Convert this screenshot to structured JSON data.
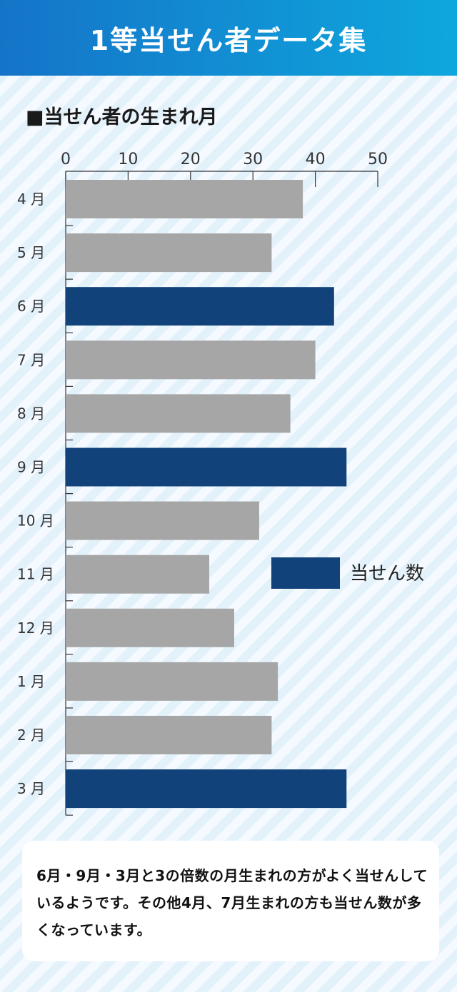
{
  "header": {
    "title": "1等当せん者データ集"
  },
  "section_title": "■当せん者の生まれ月",
  "note": "6月・9月・3月と3の倍数の月生まれの方がよく当せんしているようです。その他4月、7月生まれの方も当せん数が多くなっています。",
  "colors": {
    "highlight": "#12427a",
    "normal": "#a6a6a6",
    "header_start": "#1574c8",
    "header_end": "#0ea7dd"
  },
  "chart_data": {
    "type": "bar",
    "orientation": "horizontal",
    "title": "■当せん者の生まれ月",
    "xlim": [
      0,
      50
    ],
    "ticks": [
      "0",
      "10",
      "20",
      "30",
      "40",
      "50"
    ],
    "tick_values": [
      0,
      10,
      20,
      30,
      40,
      50
    ],
    "categories": [
      "4 月",
      "5 月",
      "6 月",
      "7 月",
      "8 月",
      "9 月",
      "10 月",
      "11 月",
      "12 月",
      "1 月",
      "2 月",
      "3 月"
    ],
    "values": [
      38,
      33,
      43,
      40,
      36,
      45,
      31,
      23,
      27,
      34,
      33,
      45
    ],
    "highlighted": [
      false,
      false,
      true,
      false,
      false,
      true,
      false,
      false,
      false,
      false,
      false,
      true
    ],
    "legend": {
      "label": "当せん数",
      "color": "#12427a",
      "placement": "right-middle"
    },
    "grid": false
  }
}
